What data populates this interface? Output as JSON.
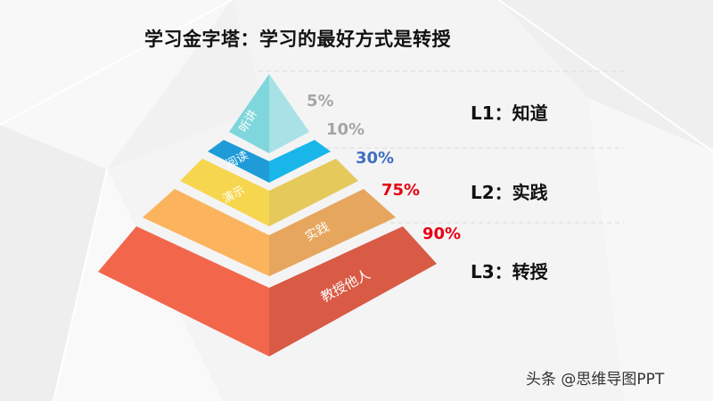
{
  "title": "学习金字塔：学习的最好方式是转授",
  "layers": [
    {
      "label": "听讲",
      "percent": "5%",
      "percent_color": "#a6a6a6",
      "front_color": "#7fd6dc",
      "side_color": "#a8e2e6"
    },
    {
      "label": "阅读",
      "percent": "10%",
      "percent_color": "#a6a6a6",
      "front_color": "#1f9bd8",
      "side_color": "#19b6ea"
    },
    {
      "label": "演示",
      "percent": "30%",
      "percent_color": "#3f6fbf",
      "front_color": "#f6d64e",
      "side_color": "#e5c95a"
    },
    {
      "label": "实践",
      "percent": "75%",
      "percent_color": "#e60012",
      "front_color": "#fbb45d",
      "side_color": "#e6a65e"
    },
    {
      "label": "教授他人",
      "percent": "90%",
      "percent_color": "#e60012",
      "front_color": "#f2674c",
      "side_color": "#d95a45"
    }
  ],
  "levels": [
    {
      "text": "L1：知道"
    },
    {
      "text": "L2：实践"
    },
    {
      "text": "L3：转授"
    }
  ],
  "watermark": "头条 @思维导图PPT"
}
